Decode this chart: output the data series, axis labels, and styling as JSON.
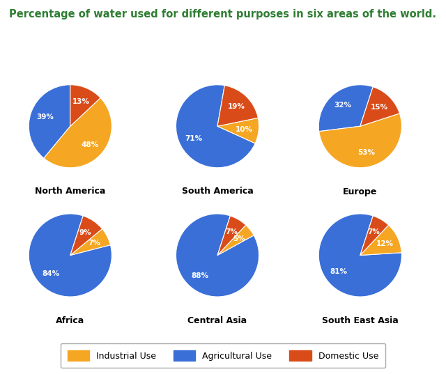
{
  "title": "Percentage of water used for different purposes in six areas of the world.",
  "title_color": "#2e7d32",
  "background_color": "#ffffff",
  "regions": [
    {
      "name": "North America",
      "values": [
        39,
        48,
        13
      ],
      "startangle": 90
    },
    {
      "name": "South America",
      "values": [
        71,
        10,
        19
      ],
      "startangle": 80
    },
    {
      "name": "Europe",
      "values": [
        32,
        53,
        15
      ],
      "startangle": 72
    },
    {
      "name": "Africa",
      "values": [
        84,
        7,
        9
      ],
      "startangle": 72
    },
    {
      "name": "Central Asia",
      "values": [
        88,
        5,
        7
      ],
      "startangle": 72
    },
    {
      "name": "South East Asia",
      "values": [
        81,
        12,
        7
      ],
      "startangle": 72
    }
  ],
  "colors": [
    "#3a6fd8",
    "#f5a623",
    "#d94c1a"
  ],
  "label_color": "#ffffff",
  "label_fontsize": 7.5,
  "region_fontsize": 9,
  "legend_fontsize": 9
}
